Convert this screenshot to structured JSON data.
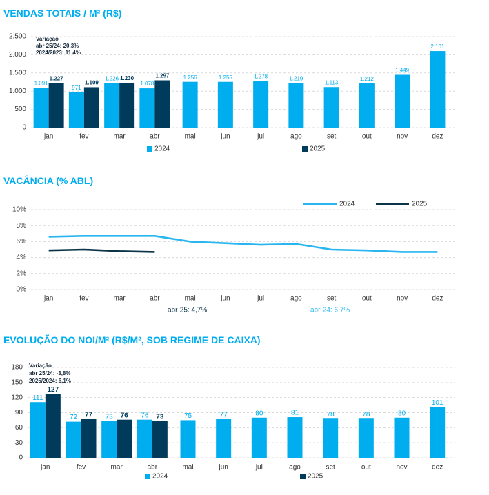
{
  "chart_data": [
    {
      "type": "bar",
      "title": "VENDAS TOTAIS / M² (R$)",
      "categories": [
        "jan",
        "fev",
        "mar",
        "abr",
        "mai",
        "jun",
        "jul",
        "ago",
        "set",
        "out",
        "nov",
        "dez"
      ],
      "series": [
        {
          "name": "2024",
          "color": "#00aeef",
          "values": [
            1091,
            971,
            1226,
            1078,
            1256,
            1255,
            1278,
            1219,
            1113,
            1212,
            1449,
            2101
          ],
          "value_labels": [
            "1.091",
            "971",
            "1.226",
            "1.078",
            "1.256",
            "1.255",
            "1.278",
            "1.219",
            "1.113",
            "1.212",
            "1.449",
            "2.101"
          ]
        },
        {
          "name": "2025",
          "color": "#003b5c",
          "values": [
            1227,
            1109,
            1230,
            1297,
            null,
            null,
            null,
            null,
            null,
            null,
            null,
            null
          ],
          "value_labels": [
            "1.227",
            "1.109",
            "1.230",
            "1.297",
            null,
            null,
            null,
            null,
            null,
            null,
            null,
            null
          ]
        }
      ],
      "ylim": [
        0,
        2500
      ],
      "yticks": [
        0,
        500,
        {
          "value": 1000,
          "label": "1.000"
        },
        {
          "value": 1500,
          "label": "1.500"
        },
        {
          "value": 2000,
          "label": "2.000"
        },
        {
          "value": 2500,
          "label": "2.500"
        }
      ],
      "grid": true,
      "annotations": [
        {
          "text": "Variação"
        },
        {
          "text": "abr 25/24:  20,3%"
        },
        {
          "text": "2024/2023:  11,4%"
        }
      ]
    },
    {
      "type": "line",
      "title": "VACÂNCIA (% ABL)",
      "categories": [
        "jan",
        "fev",
        "mar",
        "abr",
        "mai",
        "jun",
        "jul",
        "ago",
        "set",
        "out",
        "nov",
        "dez"
      ],
      "series": [
        {
          "name": "2024",
          "color": "#29b6f0",
          "values": [
            6.6,
            6.7,
            6.7,
            6.7,
            6.0,
            5.8,
            5.6,
            5.7,
            5.0,
            4.9,
            4.7,
            4.7
          ]
        },
        {
          "name": "2025",
          "color": "#0b3448",
          "values": [
            4.9,
            5.0,
            4.8,
            4.7,
            null,
            null,
            null,
            null,
            null,
            null,
            null,
            null
          ]
        }
      ],
      "ylim": [
        0,
        10
      ],
      "yticks": [
        {
          "value": 0,
          "label": "0%"
        },
        {
          "value": 2,
          "label": "2%"
        },
        {
          "value": 4,
          "label": "4%"
        },
        {
          "value": 6,
          "label": "6%"
        },
        {
          "value": 8,
          "label": "8%"
        },
        {
          "value": 10,
          "label": "10%"
        }
      ],
      "grid": true,
      "annotations": [
        {
          "text": "abr-25: 4,7%",
          "color": "#0b3448"
        },
        {
          "text": "abr-24: 6,7%",
          "color": "#29b6f0"
        }
      ]
    },
    {
      "type": "bar",
      "title": "EVOLUÇÃO DO NOI/M² (R$/M², SOB REGIME DE CAIXA)",
      "categories": [
        "jan",
        "fev",
        "mar",
        "abr",
        "mai",
        "jun",
        "jul",
        "ago",
        "set",
        "out",
        "nov",
        "dez"
      ],
      "series": [
        {
          "name": "2024",
          "color": "#00aeef",
          "values": [
            111,
            72,
            73,
            76,
            75,
            77,
            80,
            81,
            78,
            78,
            80,
            101
          ]
        },
        {
          "name": "2025",
          "color": "#003b5c",
          "values": [
            127,
            77,
            76,
            73,
            null,
            null,
            null,
            null,
            null,
            null,
            null,
            null
          ]
        }
      ],
      "ylim": [
        0,
        180
      ],
      "yticks": [
        0,
        30,
        60,
        90,
        120,
        150,
        180
      ],
      "grid": true,
      "annotations": [
        {
          "text": "Variação"
        },
        {
          "text": "abr 25/24:  -3,8%"
        },
        {
          "text": "2025/2024:  6,1%"
        }
      ]
    }
  ]
}
